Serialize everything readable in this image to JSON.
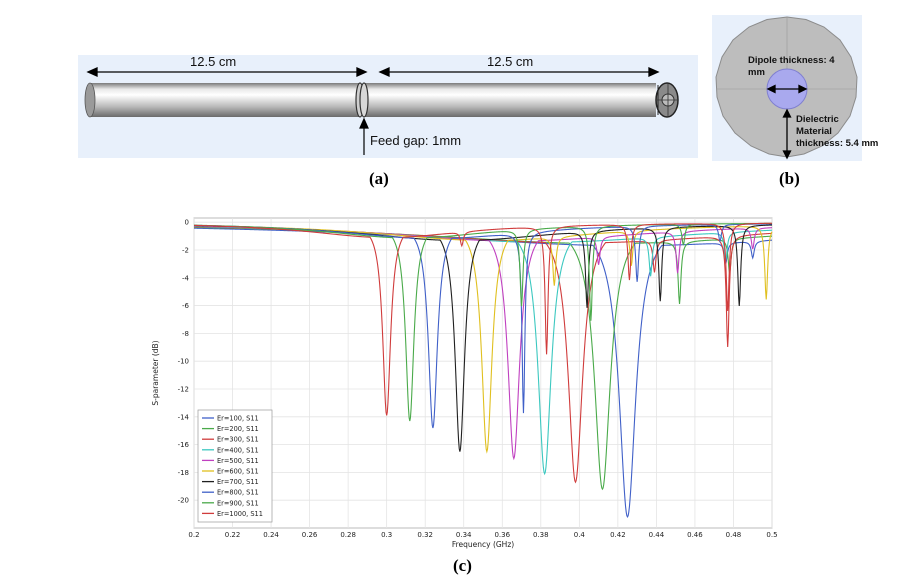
{
  "figure_a": {
    "caption": "(a)",
    "left_length": "12.5 cm",
    "right_length": "12.5 cm",
    "feed_gap": "Feed gap: 1mm"
  },
  "figure_b": {
    "caption": "(b)",
    "dipole_thickness": "Dipole thickness: 4 mm",
    "dielectric_line1": "Dielectric",
    "dielectric_line2": "Material",
    "dielectric_line3": "thickness: 5.4 mm"
  },
  "figure_c": {
    "caption": "(c)"
  },
  "chart_data": {
    "type": "line",
    "title": "",
    "xlabel": "Frequency (GHz)",
    "ylabel": "S-parameter (dB)",
    "xlim": [
      0.2,
      0.5
    ],
    "ylim": [
      -22,
      0.3
    ],
    "xticks": [
      "0.2",
      "0.22",
      "0.24",
      "0.26",
      "0.28",
      "0.3",
      "0.32",
      "0.34",
      "0.36",
      "0.38",
      "0.4",
      "0.42",
      "0.44",
      "0.46",
      "0.48",
      "0.5"
    ],
    "yticks": [
      "0",
      "-2",
      "-4",
      "-6",
      "-8",
      "-10",
      "-12",
      "-14",
      "-16",
      "-18",
      "-20"
    ],
    "grid": true,
    "legend_position": "bottom-left",
    "series": [
      {
        "name": "Er=100, S11",
        "color": "#4060c8",
        "f0": 0.425,
        "depth": -21.2,
        "width": 0.022,
        "spikes": [
          [
            0.476,
            -1.5
          ],
          [
            0.49,
            -1.2
          ]
        ]
      },
      {
        "name": "Er=200, S11",
        "color": "#4aaa4a",
        "f0": 0.412,
        "depth": -19.2,
        "width": 0.02,
        "spikes": [
          [
            0.452,
            -4.5
          ],
          [
            0.478,
            -2.5
          ]
        ]
      },
      {
        "name": "Er=300, S11",
        "color": "#d03c3c",
        "f0": 0.398,
        "depth": -18.7,
        "width": 0.018,
        "spikes": [
          [
            0.439,
            -2.3
          ],
          [
            0.477,
            -8.0
          ]
        ]
      },
      {
        "name": "Er=400, S11",
        "color": "#3cc8c0",
        "f0": 0.382,
        "depth": -18.1,
        "width": 0.016,
        "spikes": [
          [
            0.437,
            -2.8
          ],
          [
            0.476,
            -2.0
          ]
        ]
      },
      {
        "name": "Er=500, S11",
        "color": "#c040c0",
        "f0": 0.366,
        "depth": -17.0,
        "width": 0.014,
        "spikes": [
          [
            0.41,
            -2.0
          ],
          [
            0.451,
            -3.0
          ],
          [
            0.49,
            -1.5
          ]
        ]
      },
      {
        "name": "Er=600, S11",
        "color": "#e0c020",
        "f0": 0.352,
        "depth": -16.5,
        "width": 0.012,
        "spikes": [
          [
            0.387,
            -3.5
          ],
          [
            0.427,
            -2.5
          ],
          [
            0.497,
            -5.3
          ]
        ]
      },
      {
        "name": "Er=700, S11",
        "color": "#202020",
        "f0": 0.338,
        "depth": -16.5,
        "width": 0.011,
        "spikes": [
          [
            0.404,
            -5.5
          ],
          [
            0.442,
            -5.3
          ],
          [
            0.483,
            -5.8
          ]
        ]
      },
      {
        "name": "Er=800, S11",
        "color": "#4060c8",
        "f0": 0.324,
        "depth": -14.8,
        "width": 0.01,
        "spikes": [
          [
            0.371,
            -13.0
          ],
          [
            0.43,
            -4.0
          ],
          [
            0.473,
            -1.2
          ]
        ]
      },
      {
        "name": "Er=900, S11",
        "color": "#4aaa4a",
        "f0": 0.312,
        "depth": -14.3,
        "width": 0.009,
        "spikes": [
          [
            0.37,
            -5.5
          ],
          [
            0.406,
            -6.8
          ],
          [
            0.454,
            -1.5
          ]
        ]
      },
      {
        "name": "Er=1000, S11",
        "color": "#d03c3c",
        "f0": 0.3,
        "depth": -13.9,
        "width": 0.0085,
        "spikes": [
          [
            0.339,
            -1.0
          ],
          [
            0.383,
            -9.2
          ],
          [
            0.426,
            -4.0
          ],
          [
            0.477,
            -6.3
          ]
        ]
      }
    ]
  }
}
